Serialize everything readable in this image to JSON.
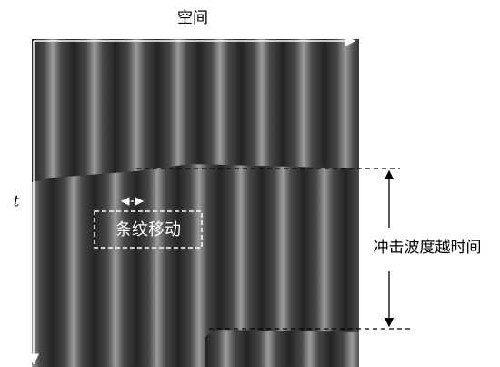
{
  "axis": {
    "space_label": "空间",
    "time_label": "t"
  },
  "annotations": {
    "fringe_shift": "条纹移动",
    "shock_transit_time": "冲击波度越时间"
  }
}
